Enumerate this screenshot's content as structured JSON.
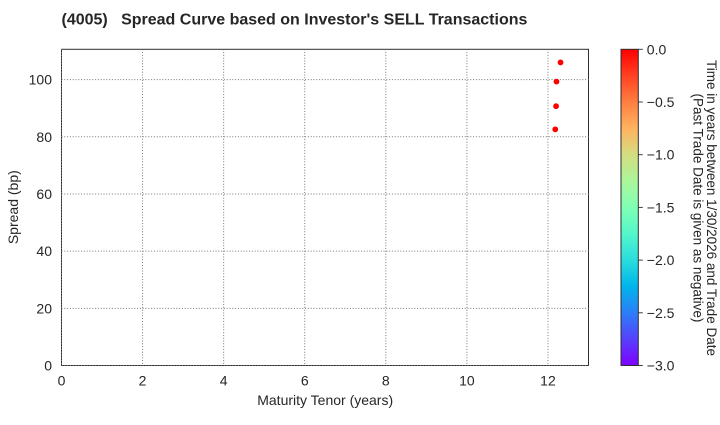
{
  "chart_data": {
    "type": "scatter",
    "title": "(4005)   Spread Curve based on Investor's SELL Transactions",
    "xlabel": "Maturity Tenor (years)",
    "ylabel": "Spread (bp)",
    "xlim": [
      0,
      13
    ],
    "ylim": [
      0,
      110.6
    ],
    "xticks": [
      0,
      2,
      4,
      6,
      8,
      10,
      12
    ],
    "yticks": [
      0,
      20,
      40,
      60,
      80,
      100
    ],
    "grid": true,
    "grid_style": "dotted",
    "points": [
      {
        "x": 12.31,
        "y": 106.0,
        "c": 0.0
      },
      {
        "x": 12.21,
        "y": 99.3,
        "c": 0.0
      },
      {
        "x": 12.2,
        "y": 90.7,
        "c": 0.0
      },
      {
        "x": 12.18,
        "y": 82.6,
        "c": 0.0
      }
    ],
    "marker": {
      "shape": "circle",
      "radius": 2.9,
      "color": "#ff0000"
    },
    "colorbar": {
      "label_lines": [
        "Time in years between 1/30/2026 and Trade Date",
        "(Past Trade Date is given as negative)"
      ],
      "vmin": -3.0,
      "vmax": 0.0,
      "ticks": [
        0.0,
        -0.5,
        -1.0,
        -1.5,
        -2.0,
        -2.5,
        -3.0
      ],
      "tick_labels": [
        "0.0",
        "−0.5",
        "−1.0",
        "−1.5",
        "−2.0",
        "−2.5",
        "−3.0"
      ],
      "cmap": "rainbow",
      "gradient_top_to_bottom": [
        "#ff0000",
        "#ff4121",
        "#ff7e41",
        "#ffb360",
        "#d4dd80",
        "#abf69b",
        "#80ffb4",
        "#54f6cb",
        "#2adddd",
        "#00b5eb",
        "#2c7ef7",
        "#5641fd",
        "#8000ff"
      ]
    },
    "colors": {
      "background": "#ffffff",
      "text": "#262626",
      "spine": "#2e2e2e",
      "grid": "#777777"
    }
  }
}
